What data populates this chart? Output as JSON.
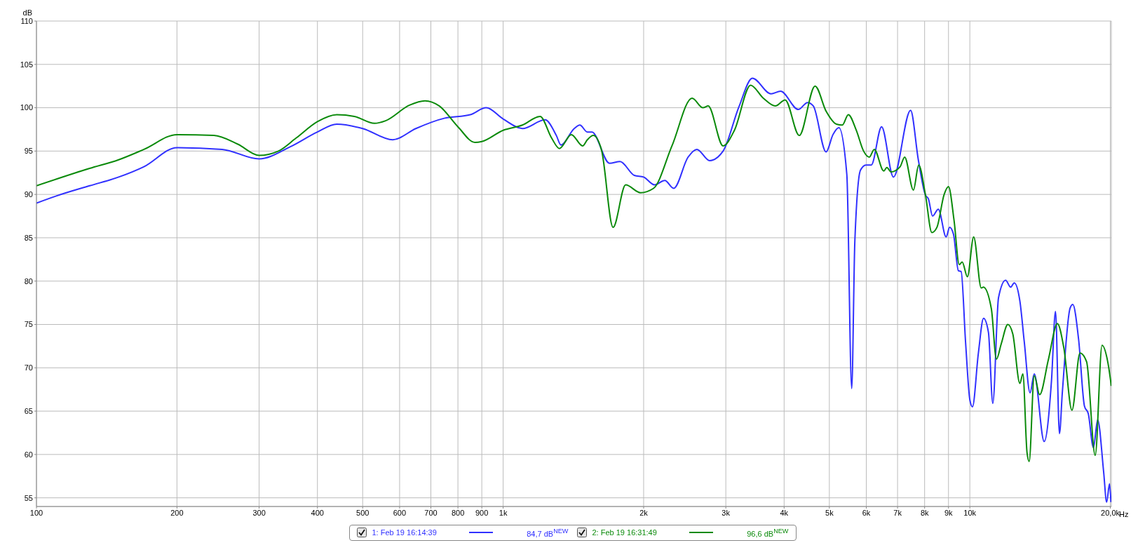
{
  "chart_data": {
    "type": "line",
    "ylabel": "dB",
    "xlim": [
      100,
      20100
    ],
    "ylim": [
      54,
      110
    ],
    "log": "x",
    "grid": true,
    "legend": "bottom",
    "xticks": [
      100,
      200,
      300,
      400,
      500,
      600,
      700,
      800,
      900,
      {
        "value": 1000,
        "label": "1k"
      },
      {
        "value": 2000,
        "label": "2k"
      },
      {
        "value": 3000,
        "label": "3k"
      },
      {
        "value": 4000,
        "label": "4k"
      },
      {
        "value": 5000,
        "label": "5k"
      },
      {
        "value": 6000,
        "label": "6k"
      },
      {
        "value": 7000,
        "label": "7k"
      },
      {
        "value": 8000,
        "label": "8k"
      },
      {
        "value": 9000,
        "label": "9k"
      },
      {
        "value": 10000,
        "label": "10k"
      },
      {
        "value": 20000,
        "label": "20,0k"
      }
    ],
    "xlabel": "Hz",
    "yticks": [
      55,
      60,
      65,
      70,
      75,
      80,
      85,
      90,
      95,
      100,
      105,
      110
    ],
    "annotations": [
      "84,7 dB$^{NEW}$",
      "96,6 dB$^{NEW}$"
    ],
    "series": [
      {
        "name": "1: Feb 19 16:14:39",
        "color": "#3030ff",
        "x": [
          100,
          110,
          130,
          150,
          170,
          200,
          250,
          300,
          350,
          400,
          440,
          500,
          580,
          650,
          750,
          850,
          920,
          1000,
          1100,
          1230,
          1300,
          1330,
          1420,
          1460,
          1515,
          1550,
          1690,
          1780,
          1910,
          2000,
          2110,
          2220,
          2320,
          2490,
          2600,
          2770,
          2960,
          3200,
          3420,
          3750,
          3930,
          4290,
          4490,
          4620,
          4920,
          5090,
          5240,
          5450,
          5583,
          5670,
          5830,
          5990,
          6150,
          6470,
          6860,
          7465,
          7755,
          8035,
          8150,
          8320,
          8560,
          8895,
          9050,
          9225,
          9450,
          9580,
          9790,
          10000,
          10130,
          10430,
          10700,
          10960,
          11200,
          11520,
          11930,
          12230,
          12450,
          12800,
          13080,
          13460,
          13740,
          14430,
          14960,
          15260,
          15560,
          15780,
          16400,
          16620,
          17100,
          17600,
          17940,
          18400,
          18790,
          19350,
          19640,
          19920,
          20060
        ],
        "values": [
          89.0,
          89.8,
          91.0,
          92.0,
          93.2,
          95.4,
          95.2,
          94.1,
          95.5,
          97.2,
          98.1,
          97.6,
          96.3,
          97.6,
          98.8,
          99.2,
          100.0,
          98.7,
          97.6,
          98.6,
          96.8,
          95.7,
          97.6,
          98.0,
          97.2,
          97.2,
          93.6,
          93.8,
          92.2,
          92.0,
          91.1,
          91.6,
          90.7,
          94.3,
          95.2,
          93.9,
          95.0,
          100.1,
          103.4,
          101.6,
          101.9,
          99.8,
          100.6,
          100.2,
          94.9,
          96.9,
          97.7,
          92.3,
          67.6,
          84.6,
          92.8,
          93.4,
          93.4,
          97.8,
          92.0,
          99.7,
          94.0,
          89.9,
          89.5,
          87.5,
          88.3,
          85.1,
          86.2,
          85.4,
          81.2,
          81.1,
          73.0,
          66.3,
          65.5,
          71.7,
          75.7,
          74.1,
          65.9,
          78.1,
          80.1,
          79.3,
          79.8,
          77.7,
          73.0,
          67.1,
          69.3,
          61.5,
          68.5,
          76.5,
          62.4,
          67.1,
          76.9,
          77.3,
          73.3,
          65.6,
          64.7,
          60.8,
          64.0,
          58.0,
          54.5,
          56.6,
          54.5
        ]
      },
      {
        "name": "2: Feb 19 16:31:49",
        "color": "#0a8a0a",
        "x": [
          100,
          130,
          150,
          170,
          200,
          240,
          270,
          300,
          330,
          360,
          400,
          440,
          480,
          530,
          560,
          630,
          680,
          730,
          800,
          870,
          900,
          1000,
          1100,
          1200,
          1270,
          1320,
          1400,
          1480,
          1515,
          1560,
          1625,
          1720,
          1830,
          1970,
          2100,
          2300,
          2540,
          2680,
          2750,
          2960,
          3130,
          3390,
          3610,
          3830,
          4020,
          4310,
          4660,
          4920,
          5180,
          5330,
          5490,
          5710,
          5920,
          6090,
          6240,
          6540,
          6640,
          6780,
          7090,
          7250,
          7570,
          7770,
          8035,
          8290,
          8500,
          8810,
          9000,
          9250,
          9490,
          9630,
          9880,
          10190,
          10580,
          10690,
          11120,
          11400,
          11680,
          12060,
          12360,
          12800,
          12990,
          13260,
          13400,
          13740,
          14110,
          14740,
          15400,
          15900,
          16550,
          17220,
          17790,
          18560,
          19200,
          19760,
          20100
        ],
        "values": [
          91.0,
          93.0,
          94.0,
          95.2,
          96.9,
          96.8,
          95.8,
          94.5,
          95.0,
          96.5,
          98.4,
          99.2,
          99.0,
          98.2,
          98.5,
          100.3,
          100.8,
          100.2,
          97.8,
          96.0,
          96.1,
          97.4,
          98.0,
          99.0,
          96.5,
          95.3,
          96.9,
          95.6,
          96.3,
          96.8,
          95.1,
          86.2,
          91.1,
          90.2,
          90.7,
          95.6,
          101.1,
          100.0,
          100.2,
          95.6,
          97.4,
          102.6,
          101.1,
          100.2,
          100.9,
          96.8,
          102.5,
          99.6,
          98.1,
          98.0,
          99.2,
          97.4,
          95.0,
          94.3,
          95.2,
          92.7,
          93.1,
          92.6,
          93.2,
          94.3,
          90.5,
          93.4,
          89.9,
          85.6,
          86.2,
          90.0,
          90.9,
          87.0,
          81.9,
          82.2,
          80.5,
          85.1,
          79.2,
          79.3,
          76.8,
          71.0,
          72.8,
          75.0,
          73.9,
          68.2,
          69.3,
          60.2,
          59.2,
          69.1,
          66.9,
          71.0,
          75.1,
          72.3,
          65.1,
          71.7,
          70.7,
          59.9,
          72.6,
          70.6,
          67.9
        ]
      }
    ]
  }
}
